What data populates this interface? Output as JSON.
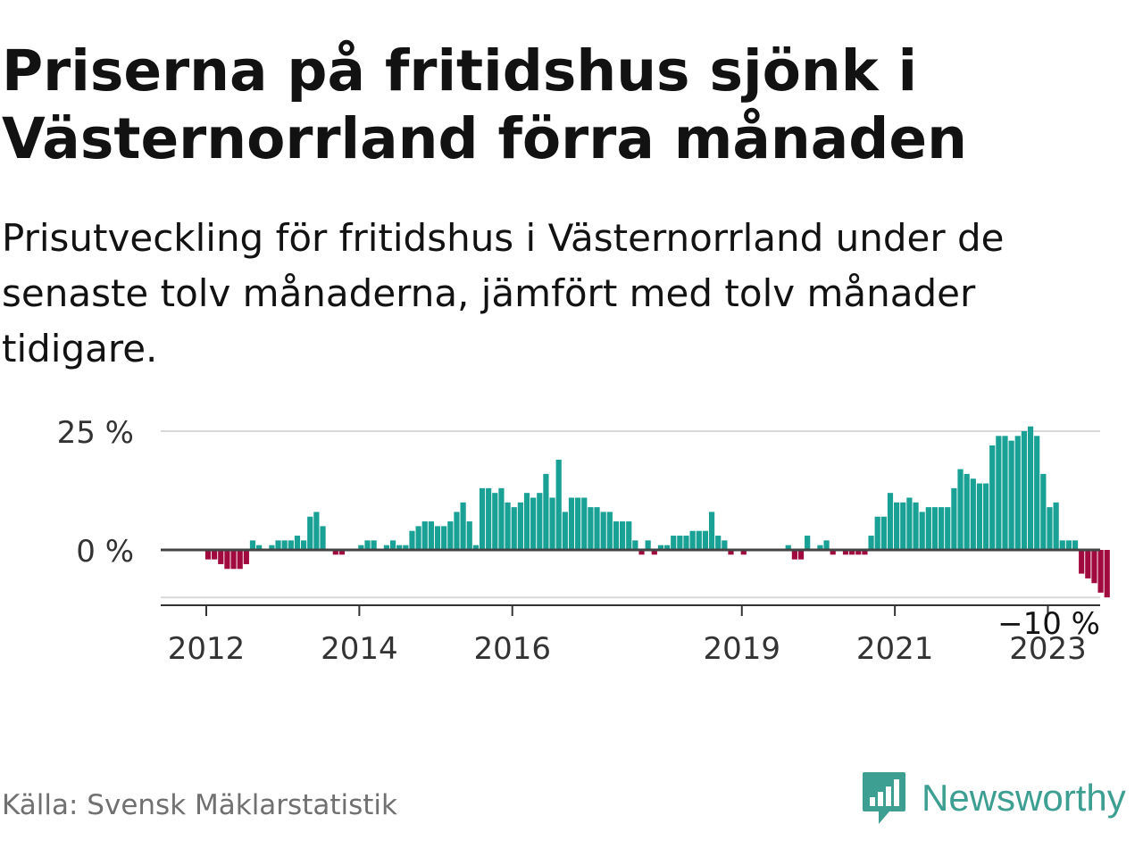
{
  "header": {
    "title": "Priserna på fritidshus sjönk i Västernorrland förra månaden",
    "subtitle": "Prisutveckling för fritidshus i Västernorrland under de senaste tolv månaderna, jämfört med tolv månader tidigare."
  },
  "footer": {
    "source": "Källa: Svensk Mäklarstatistik",
    "brand": "Newsworthy"
  },
  "colors": {
    "positive": "#19a196",
    "negative": "#a10a3f",
    "brand": "#3c9f92"
  },
  "icons": {
    "logo": "bar-chart-speech-bubble-icon"
  },
  "chart_data": {
    "type": "bar",
    "x_start": "2012-01",
    "frequency": "monthly",
    "values": [
      -2,
      -2,
      -3,
      -4,
      -4,
      -4,
      -3,
      2,
      1,
      0,
      1,
      2,
      2,
      2,
      3,
      2,
      7,
      8,
      5,
      0,
      -1,
      -1,
      0,
      0,
      1,
      2,
      2,
      0,
      1,
      2,
      1,
      1,
      4,
      5,
      6,
      6,
      5,
      5,
      6,
      8,
      10,
      6,
      1,
      13,
      13,
      12,
      13,
      10,
      9,
      10,
      12,
      11,
      12,
      16,
      11,
      19,
      8,
      11,
      11,
      11,
      9,
      9,
      8,
      8,
      6,
      6,
      6,
      2,
      -1,
      2,
      -1,
      1,
      1,
      3,
      3,
      3,
      4,
      4,
      4,
      8,
      3,
      2,
      -1,
      0,
      -1,
      0,
      0,
      0,
      0,
      0,
      0,
      1,
      -2,
      -2,
      3,
      0,
      1,
      2,
      -1,
      0,
      -1,
      -1,
      -1,
      -1,
      3,
      7,
      7,
      12,
      10,
      10,
      11,
      10,
      8,
      9,
      9,
      9,
      9,
      13,
      17,
      16,
      15,
      14,
      14,
      22,
      24,
      24,
      23,
      24,
      25,
      26,
      24,
      16,
      9,
      10,
      2,
      2,
      2,
      -5,
      -6,
      -7,
      -9,
      -10
    ],
    "ylim": [
      -11,
      25
    ],
    "y_ticks": [
      {
        "value": 25,
        "label": "25 %"
      },
      {
        "value": 0,
        "label": "0 %"
      },
      {
        "value": -10,
        "label": "−10 %"
      }
    ],
    "x_ticks": [
      {
        "year": 2012,
        "label": "2012"
      },
      {
        "year": 2014,
        "label": "2014"
      },
      {
        "year": 2016,
        "label": "2016"
      },
      {
        "year": 2019,
        "label": "2019"
      },
      {
        "year": 2021,
        "label": "2021"
      },
      {
        "year": 2023,
        "label": "2023"
      }
    ],
    "grid": true,
    "legend": "none"
  }
}
